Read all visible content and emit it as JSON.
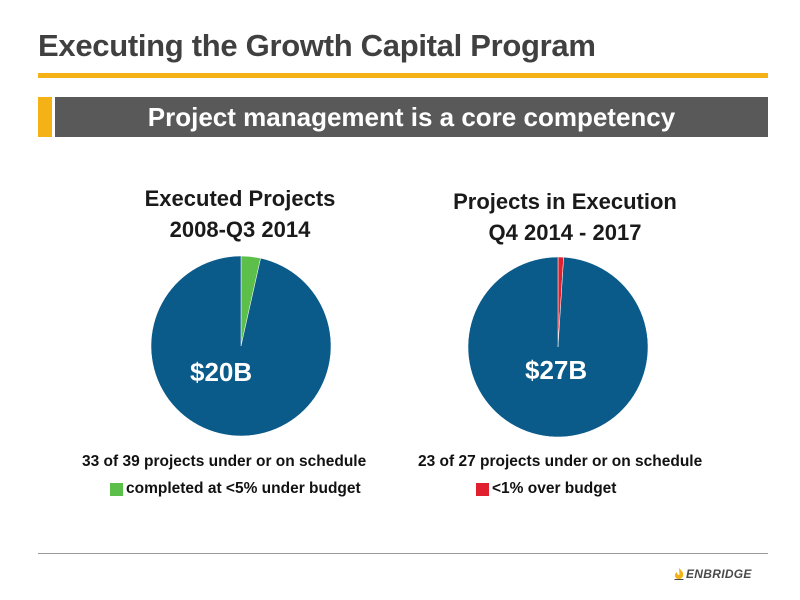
{
  "slide": {
    "title": "Executing the Growth Capital Program",
    "banner": "Project management is a core competency"
  },
  "colors": {
    "accent": "#f5b216",
    "banner_bg": "#595959",
    "pie_main": "#0a5a8a",
    "under_budget": "#5cbf4a",
    "over_budget": "#e0202e"
  },
  "chart_data": [
    {
      "type": "pie",
      "title_line1": "Executed Projects",
      "title_line2": "2008-Q3 2014",
      "center_label": "$20B",
      "caption": "33 of 39 projects under or on schedule",
      "legend_label": "completed at <5% under budget",
      "slices": [
        {
          "label": "completed at <5% under budget",
          "value": 3.5,
          "color": "#5cbf4a"
        },
        {
          "label": "",
          "value": 96.5,
          "color": "#0a5a8a"
        }
      ]
    },
    {
      "type": "pie",
      "title_line1": "Projects in Execution",
      "title_line2": "Q4 2014 - 2017",
      "center_label": "$27B",
      "caption": "23 of 27 projects under or on schedule",
      "legend_label": "<1% over budget",
      "slices": [
        {
          "label": "<1% over budget",
          "value": 1,
          "color": "#e0202e"
        },
        {
          "label": "",
          "value": 99,
          "color": "#0a5a8a"
        }
      ]
    }
  ],
  "footer": {
    "logo_text": "ENBRIDGE",
    "logo_icon": "enbridge-flame-logo"
  }
}
